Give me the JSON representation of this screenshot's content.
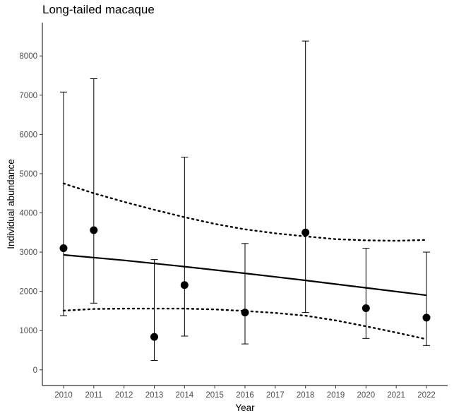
{
  "chart_data": {
    "type": "scatter",
    "title": "Long-tailed macaque",
    "xlabel": "Year",
    "ylabel": "Individual abundance",
    "xlim": [
      2009.3,
      2022.7
    ],
    "ylim": [
      -400,
      8850
    ],
    "x_ticks": [
      2010,
      2011,
      2012,
      2013,
      2014,
      2015,
      2016,
      2017,
      2018,
      2019,
      2020,
      2021,
      2022
    ],
    "y_ticks": [
      0,
      1000,
      2000,
      3000,
      4000,
      5000,
      6000,
      7000,
      8000
    ],
    "grid": false,
    "series": [
      {
        "type": "points_with_errorbars",
        "x": [
          2010,
          2011,
          2013,
          2014,
          2016,
          2018,
          2020,
          2022
        ],
        "y": [
          3100,
          3560,
          840,
          2160,
          1460,
          3500,
          1570,
          1330
        ],
        "lower": [
          1380,
          1700,
          240,
          860,
          660,
          1460,
          800,
          620
        ],
        "upper": [
          7080,
          7420,
          2810,
          5420,
          3220,
          8380,
          3100,
          3000
        ]
      },
      {
        "type": "trend_line",
        "style": "solid",
        "x": [
          2010,
          2012,
          2014,
          2016,
          2018,
          2020,
          2022
        ],
        "y": [
          2930,
          2790,
          2630,
          2460,
          2280,
          2090,
          1900
        ]
      },
      {
        "type": "upper_band",
        "style": "dotted",
        "x": [
          2010,
          2011,
          2012,
          2013,
          2014,
          2015,
          2016,
          2017,
          2018,
          2019,
          2020,
          2021,
          2022
        ],
        "y": [
          4750,
          4500,
          4280,
          4080,
          3890,
          3720,
          3580,
          3480,
          3400,
          3330,
          3300,
          3290,
          3310
        ]
      },
      {
        "type": "lower_band",
        "style": "dotted",
        "x": [
          2010,
          2011,
          2012,
          2013,
          2014,
          2015,
          2016,
          2017,
          2018,
          2019,
          2020,
          2021,
          2022
        ],
        "y": [
          1510,
          1550,
          1560,
          1560,
          1560,
          1540,
          1500,
          1450,
          1380,
          1260,
          1110,
          950,
          780
        ]
      }
    ]
  }
}
